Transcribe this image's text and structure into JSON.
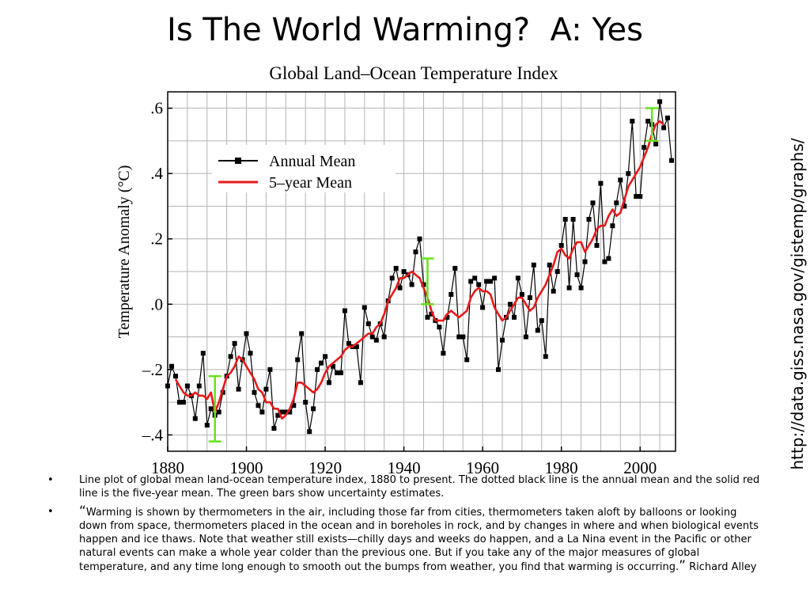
{
  "slide": {
    "title": "Is The World Warming?  A: Yes",
    "source_url": "http://data.giss.nasa.gov/gistemp/graphs/",
    "bullets": [
      {
        "text": "Line plot of global mean land-ocean temperature index, 1880 to present. The dotted black line is the annual mean and the solid red line is the five-year mean. The green bars show uncertainty estimates."
      },
      {
        "open_quote": "“",
        "text": "Warming is shown by thermometers in the air, including those far from cities, thermometers taken aloft by balloons or looking down from space, thermometers placed in the ocean and in boreholes in rock, and by changes in where and when biological events happen and ice thaws. Note that weather still exists—chilly days and weeks do happen, and a La Nina event in the Pacific or other natural events can make a whole year colder than the previous one. But if you take any of the major measures of global temperature, and any time long enough to smooth out the bumps from weather, you find that warming is occurring.",
        "close_quote": "”",
        "attribution": " Richard Alley"
      }
    ]
  },
  "chart_data": {
    "type": "line",
    "title": "Global Land–Ocean Temperature Index",
    "xlabel": "",
    "ylabel": "Temperature Anomaly (°C)",
    "xlim": [
      1880,
      2009
    ],
    "ylim": [
      -0.45,
      0.65
    ],
    "x_ticks": [
      1880,
      1900,
      1920,
      1940,
      1960,
      1980,
      2000
    ],
    "x_tick_labels": [
      "1880",
      "1900",
      "1920",
      "1940",
      "1960",
      "1980",
      "2000"
    ],
    "y_ticks": [
      -0.4,
      -0.2,
      0.0,
      0.2,
      0.4,
      0.6
    ],
    "y_tick_labels": [
      "–.4",
      "–.2",
      ".0",
      ".2",
      ".4",
      ".6"
    ],
    "grid": true,
    "legend_position": "top-left",
    "series": [
      {
        "name": "Annual Mean",
        "color": "#000000",
        "marker": "square",
        "x": [
          1880,
          1881,
          1882,
          1883,
          1884,
          1885,
          1886,
          1887,
          1888,
          1889,
          1890,
          1891,
          1892,
          1893,
          1894,
          1895,
          1896,
          1897,
          1898,
          1899,
          1900,
          1901,
          1902,
          1903,
          1904,
          1905,
          1906,
          1907,
          1908,
          1909,
          1910,
          1911,
          1912,
          1913,
          1914,
          1915,
          1916,
          1917,
          1918,
          1919,
          1920,
          1921,
          1922,
          1923,
          1924,
          1925,
          1926,
          1927,
          1928,
          1929,
          1930,
          1931,
          1932,
          1933,
          1934,
          1935,
          1936,
          1937,
          1938,
          1939,
          1940,
          1941,
          1942,
          1943,
          1944,
          1945,
          1946,
          1947,
          1948,
          1949,
          1950,
          1951,
          1952,
          1953,
          1954,
          1955,
          1956,
          1957,
          1958,
          1959,
          1960,
          1961,
          1962,
          1963,
          1964,
          1965,
          1966,
          1967,
          1968,
          1969,
          1970,
          1971,
          1972,
          1973,
          1974,
          1975,
          1976,
          1977,
          1978,
          1979,
          1980,
          1981,
          1982,
          1983,
          1984,
          1985,
          1986,
          1987,
          1988,
          1989,
          1990,
          1991,
          1992,
          1993,
          1994,
          1995,
          1996,
          1997,
          1998,
          1999,
          2000,
          2001,
          2002,
          2003,
          2004,
          2005,
          2006,
          2007,
          2008
        ],
        "values": [
          -0.25,
          -0.19,
          -0.22,
          -0.3,
          -0.3,
          -0.25,
          -0.28,
          -0.35,
          -0.25,
          -0.15,
          -0.37,
          -0.32,
          -0.34,
          -0.33,
          -0.27,
          -0.22,
          -0.16,
          -0.12,
          -0.26,
          -0.17,
          -0.09,
          -0.15,
          -0.27,
          -0.31,
          -0.33,
          -0.26,
          -0.2,
          -0.38,
          -0.34,
          -0.33,
          -0.33,
          -0.33,
          -0.31,
          -0.17,
          -0.09,
          -0.3,
          -0.39,
          -0.32,
          -0.2,
          -0.18,
          -0.16,
          -0.24,
          -0.19,
          -0.21,
          -0.21,
          -0.02,
          -0.12,
          -0.13,
          -0.13,
          -0.24,
          -0.01,
          -0.06,
          -0.1,
          -0.11,
          -0.06,
          -0.1,
          0.01,
          0.08,
          0.11,
          0.05,
          0.1,
          0.09,
          0.06,
          0.16,
          0.2,
          0.06,
          -0.04,
          -0.03,
          -0.05,
          -0.07,
          -0.15,
          -0.04,
          0.03,
          0.11,
          -0.1,
          -0.1,
          -0.17,
          0.07,
          0.08,
          0.06,
          -0.01,
          0.07,
          0.07,
          0.08,
          -0.2,
          -0.11,
          -0.04,
          0.0,
          -0.04,
          0.08,
          0.03,
          -0.1,
          0.02,
          0.12,
          -0.08,
          -0.05,
          -0.16,
          0.12,
          0.04,
          0.1,
          0.18,
          0.26,
          0.05,
          0.26,
          0.09,
          0.05,
          0.13,
          0.26,
          0.31,
          0.18,
          0.37,
          0.13,
          0.14,
          0.24,
          0.31,
          0.38,
          0.3,
          0.4,
          0.56,
          0.33,
          0.33,
          0.48,
          0.56,
          0.55,
          0.49,
          0.62,
          0.54,
          0.57,
          0.44
        ]
      },
      {
        "name": "5–year Mean",
        "color": "#e8191a",
        "marker": "none",
        "x": [
          1882,
          1883,
          1884,
          1885,
          1886,
          1887,
          1888,
          1889,
          1890,
          1891,
          1892,
          1893,
          1894,
          1895,
          1896,
          1897,
          1898,
          1899,
          1900,
          1901,
          1902,
          1903,
          1904,
          1905,
          1906,
          1907,
          1908,
          1909,
          1910,
          1911,
          1912,
          1913,
          1914,
          1915,
          1916,
          1917,
          1918,
          1919,
          1920,
          1921,
          1922,
          1923,
          1924,
          1925,
          1926,
          1927,
          1928,
          1929,
          1930,
          1931,
          1932,
          1933,
          1934,
          1935,
          1936,
          1937,
          1938,
          1939,
          1940,
          1941,
          1942,
          1943,
          1944,
          1945,
          1946,
          1947,
          1948,
          1949,
          1950,
          1951,
          1952,
          1953,
          1954,
          1955,
          1956,
          1957,
          1958,
          1959,
          1960,
          1961,
          1962,
          1963,
          1964,
          1965,
          1966,
          1967,
          1968,
          1969,
          1970,
          1971,
          1972,
          1973,
          1974,
          1975,
          1976,
          1977,
          1978,
          1979,
          1980,
          1981,
          1982,
          1983,
          1984,
          1985,
          1986,
          1987,
          1988,
          1989,
          1990,
          1991,
          1992,
          1993,
          1994,
          1995,
          1996,
          1997,
          1998,
          1999,
          2000,
          2001,
          2002,
          2003,
          2004,
          2005,
          2006
        ],
        "values": [
          -0.23,
          -0.25,
          -0.27,
          -0.28,
          -0.28,
          -0.27,
          -0.28,
          -0.28,
          -0.29,
          -0.27,
          -0.33,
          -0.3,
          -0.26,
          -0.22,
          -0.21,
          -0.19,
          -0.16,
          -0.17,
          -0.19,
          -0.21,
          -0.23,
          -0.26,
          -0.27,
          -0.3,
          -0.3,
          -0.32,
          -0.32,
          -0.35,
          -0.34,
          -0.32,
          -0.29,
          -0.24,
          -0.24,
          -0.25,
          -0.26,
          -0.27,
          -0.26,
          -0.24,
          -0.21,
          -0.19,
          -0.18,
          -0.17,
          -0.16,
          -0.14,
          -0.13,
          -0.13,
          -0.12,
          -0.11,
          -0.1,
          -0.09,
          -0.09,
          -0.07,
          -0.06,
          -0.03,
          0.01,
          0.03,
          0.05,
          0.08,
          0.08,
          0.09,
          0.1,
          0.09,
          0.08,
          0.05,
          0.02,
          -0.02,
          -0.05,
          -0.05,
          -0.05,
          -0.03,
          -0.02,
          -0.03,
          -0.04,
          -0.03,
          -0.02,
          0.02,
          0.04,
          0.05,
          0.04,
          0.04,
          0.03,
          -0.01,
          -0.03,
          -0.05,
          -0.04,
          -0.02,
          0.0,
          0.02,
          0.02,
          0.0,
          -0.02,
          -0.01,
          0.02,
          0.04,
          0.06,
          0.09,
          0.12,
          0.16,
          0.17,
          0.15,
          0.14,
          0.17,
          0.19,
          0.19,
          0.16,
          0.18,
          0.2,
          0.23,
          0.24,
          0.24,
          0.27,
          0.29,
          0.27,
          0.28,
          0.32,
          0.36,
          0.38,
          0.4,
          0.42,
          0.45,
          0.48,
          0.52,
          0.55,
          0.56,
          0.55
        ]
      }
    ],
    "uncertainty_bars": {
      "color": "#66e21e",
      "x": [
        1892,
        1946,
        2003
      ],
      "low": [
        -0.42,
        0.0,
        0.5
      ],
      "high": [
        -0.22,
        0.14,
        0.6
      ]
    }
  }
}
